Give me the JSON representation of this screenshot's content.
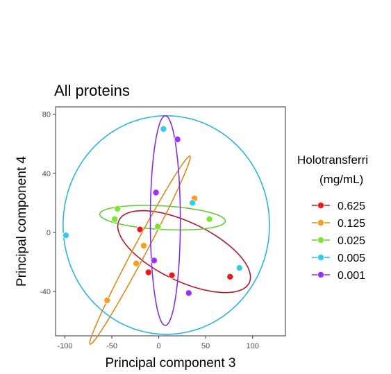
{
  "chart_data": {
    "type": "scatter",
    "title": "All proteins",
    "xlabel": "Principal component 3",
    "ylabel": "Principal component 4",
    "xlim": [
      -110,
      135
    ],
    "ylim": [
      -70,
      85
    ],
    "xticks": [
      -100,
      -50,
      0,
      50,
      100
    ],
    "yticks": [
      -40,
      0,
      40,
      80
    ],
    "grid": false,
    "legend": {
      "title_line1": "Holotransferri",
      "title_line2": "(mg/mL)",
      "placement": "right"
    },
    "series": [
      {
        "name": "0.625",
        "color": "#e41a1c",
        "ellipse_color": "#b2182b",
        "points": [
          [
            -20,
            2
          ],
          [
            -11,
            -27
          ],
          [
            14,
            -29
          ],
          [
            76,
            -30
          ]
        ],
        "ellipse": {
          "center": [
            27,
            -13
          ],
          "semi_axes": [
            73,
            21
          ],
          "angle_deg": -15
        }
      },
      {
        "name": "0.125",
        "color": "#ff9a1f",
        "ellipse_color": "#d98a1a",
        "points": [
          [
            -55,
            -46
          ],
          [
            -24,
            -21
          ],
          [
            -16,
            -9
          ],
          [
            38,
            23
          ]
        ],
        "ellipse": {
          "center": [
            -20,
            -12
          ],
          "semi_axes": [
            83,
            6
          ],
          "angle_deg": 50
        }
      },
      {
        "name": "0.025",
        "color": "#7be52f",
        "ellipse_color": "#66cc33",
        "points": [
          [
            -44,
            16
          ],
          [
            -47,
            9
          ],
          [
            -1,
            4
          ],
          [
            54,
            9
          ]
        ],
        "ellipse": {
          "center": [
            4,
            10
          ],
          "semi_axes": [
            67,
            8
          ],
          "angle_deg": -2
        }
      },
      {
        "name": "0.005",
        "color": "#33ccee",
        "ellipse_color": "#2ab5dc",
        "points": [
          [
            -99,
            -2
          ],
          [
            5,
            70
          ],
          [
            36,
            20
          ],
          [
            86,
            -24
          ]
        ],
        "ellipse": {
          "center": [
            8,
            5
          ],
          "semi_axes": [
            110,
            74
          ],
          "angle_deg": 0
        }
      },
      {
        "name": "0.001",
        "color": "#9b30ff",
        "ellipse_color": "#8a2be2",
        "points": [
          [
            20,
            63
          ],
          [
            -3,
            27
          ],
          [
            -5,
            -19
          ],
          [
            32,
            -41
          ]
        ],
        "ellipse": {
          "center": [
            7,
            8
          ],
          "semi_axes": [
            16,
            71
          ],
          "angle_deg": 0
        }
      }
    ]
  }
}
